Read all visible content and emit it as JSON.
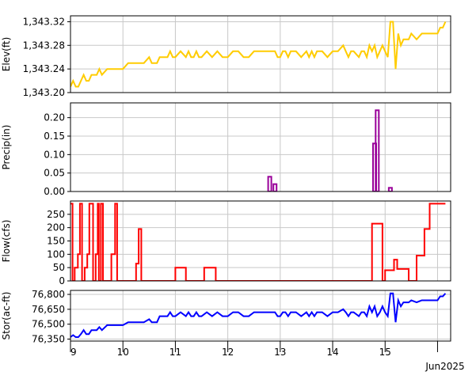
{
  "chart_data": [
    {
      "type": "line",
      "ylabel": "Elev(ft)",
      "ylim": [
        1343.2,
        1343.33
      ],
      "yticks": [
        1343.2,
        1343.24,
        1343.28,
        1343.32
      ],
      "ytick_labels": [
        "1,343.20",
        "1,343.24",
        "1,343.28",
        "1,343.32"
      ],
      "color": "#ffcc00",
      "grid": true,
      "series": [
        {
          "x": [
            9.0,
            9.05,
            9.1,
            9.15,
            9.2,
            9.25,
            9.3,
            9.35,
            9.4,
            9.45,
            9.5,
            9.55,
            9.6,
            9.7,
            9.8,
            9.9,
            10.0,
            10.1,
            10.2,
            10.3,
            10.4,
            10.5,
            10.55,
            10.6,
            10.65,
            10.7,
            10.75,
            10.8,
            10.85,
            10.9,
            10.95,
            11.0,
            11.1,
            11.2,
            11.25,
            11.3,
            11.35,
            11.4,
            11.45,
            11.5,
            11.6,
            11.7,
            11.8,
            11.9,
            12.0,
            12.1,
            12.2,
            12.3,
            12.4,
            12.5,
            12.6,
            12.7,
            12.8,
            12.9,
            12.95,
            13.0,
            13.05,
            13.1,
            13.15,
            13.2,
            13.3,
            13.4,
            13.5,
            13.55,
            13.6,
            13.65,
            13.7,
            13.8,
            13.9,
            14.0,
            14.1,
            14.2,
            14.25,
            14.3,
            14.35,
            14.4,
            14.5,
            14.55,
            14.6,
            14.65,
            14.7,
            14.75,
            14.8,
            14.85,
            14.9,
            14.95,
            15.0,
            15.05,
            15.1,
            15.15,
            15.2,
            15.25,
            15.3,
            15.35,
            15.4,
            15.45,
            15.5,
            15.6,
            15.7,
            15.8,
            15.9,
            15.95,
            16.0,
            16.05,
            16.1,
            16.15
          ],
          "y": [
            1343.21,
            1343.22,
            1343.21,
            1343.21,
            1343.22,
            1343.23,
            1343.22,
            1343.22,
            1343.23,
            1343.23,
            1343.23,
            1343.24,
            1343.23,
            1343.24,
            1343.24,
            1343.24,
            1343.24,
            1343.25,
            1343.25,
            1343.25,
            1343.25,
            1343.26,
            1343.25,
            1343.25,
            1343.25,
            1343.26,
            1343.26,
            1343.26,
            1343.26,
            1343.27,
            1343.26,
            1343.26,
            1343.27,
            1343.26,
            1343.27,
            1343.26,
            1343.26,
            1343.27,
            1343.26,
            1343.26,
            1343.27,
            1343.26,
            1343.27,
            1343.26,
            1343.26,
            1343.27,
            1343.27,
            1343.26,
            1343.26,
            1343.27,
            1343.27,
            1343.27,
            1343.27,
            1343.27,
            1343.26,
            1343.26,
            1343.27,
            1343.27,
            1343.26,
            1343.27,
            1343.27,
            1343.26,
            1343.27,
            1343.26,
            1343.27,
            1343.26,
            1343.27,
            1343.27,
            1343.26,
            1343.27,
            1343.27,
            1343.28,
            1343.27,
            1343.26,
            1343.27,
            1343.27,
            1343.26,
            1343.27,
            1343.27,
            1343.26,
            1343.28,
            1343.27,
            1343.28,
            1343.26,
            1343.27,
            1343.28,
            1343.27,
            1343.26,
            1343.32,
            1343.32,
            1343.24,
            1343.3,
            1343.28,
            1343.29,
            1343.29,
            1343.29,
            1343.3,
            1343.29,
            1343.3,
            1343.3,
            1343.3,
            1343.3,
            1343.3,
            1343.31,
            1343.31,
            1343.32
          ]
        }
      ]
    },
    {
      "type": "bar",
      "ylabel": "Precip(in)",
      "ylim": [
        0,
        0.24
      ],
      "yticks": [
        0.0,
        0.05,
        0.1,
        0.15,
        0.2
      ],
      "ytick_labels": [
        "0.00",
        "0.05",
        "0.10",
        "0.15",
        "0.20"
      ],
      "color": "#990099",
      "grid": true,
      "series": [
        {
          "x": [
            12.8,
            12.9,
            14.8,
            14.85,
            15.1
          ],
          "y": [
            0.04,
            0.02,
            0.13,
            0.22,
            0.01
          ]
        }
      ]
    },
    {
      "type": "line",
      "ylabel": "Flow(cfs)",
      "ylim": [
        0,
        300
      ],
      "yticks": [
        0,
        50,
        100,
        150,
        200,
        250
      ],
      "ytick_labels": [
        "0",
        "50",
        "100",
        "150",
        "200",
        "250"
      ],
      "color": "#ff0000",
      "grid": true,
      "series": [
        {
          "x": [
            9.0,
            9.04,
            9.04,
            9.08,
            9.08,
            9.14,
            9.14,
            9.18,
            9.18,
            9.22,
            9.22,
            9.27,
            9.27,
            9.32,
            9.32,
            9.36,
            9.36,
            9.43,
            9.43,
            9.48,
            9.48,
            9.52,
            9.52,
            9.54,
            9.54,
            9.58,
            9.58,
            9.62,
            9.62,
            9.78,
            9.78,
            9.85,
            9.85,
            9.89,
            9.89,
            9.94,
            9.94,
            10.25,
            10.25,
            10.3,
            10.3,
            10.35,
            10.35,
            10.39,
            10.39,
            11.0,
            11.0,
            11.2,
            11.2,
            11.55,
            11.55,
            11.77,
            11.77,
            14.75,
            14.75,
            14.95,
            14.95,
            15.0,
            15.0,
            15.17,
            15.17,
            15.23,
            15.23,
            15.28,
            15.28,
            15.45,
            15.45,
            15.5,
            15.5,
            15.6,
            15.6,
            15.75,
            15.75,
            15.85,
            15.85,
            15.9,
            15.9,
            16.15
          ],
          "y": [
            290,
            290,
            0,
            0,
            50,
            50,
            100,
            100,
            290,
            290,
            0,
            0,
            50,
            50,
            100,
            100,
            290,
            290,
            0,
            0,
            100,
            100,
            290,
            290,
            0,
            0,
            290,
            290,
            0,
            0,
            100,
            100,
            290,
            290,
            0,
            0,
            0,
            0,
            65,
            65,
            195,
            195,
            0,
            0,
            0,
            0,
            50,
            50,
            0,
            0,
            50,
            50,
            0,
            0,
            215,
            215,
            0,
            0,
            40,
            40,
            80,
            80,
            45,
            45,
            45,
            45,
            0,
            0,
            0,
            0,
            95,
            95,
            195,
            195,
            290,
            290,
            290,
            290
          ]
        }
      ]
    },
    {
      "type": "line",
      "ylabel": "Stor(ac-ft)",
      "ylim": [
        76330,
        76840
      ],
      "yticks": [
        76350,
        76500,
        76650,
        76800
      ],
      "ytick_labels": [
        "76,350",
        "76,500",
        "76,650",
        "76,800"
      ],
      "color": "#0000ff",
      "grid": true,
      "series": [
        {
          "x": [
            9.0,
            9.05,
            9.1,
            9.15,
            9.2,
            9.25,
            9.3,
            9.35,
            9.4,
            9.45,
            9.5,
            9.55,
            9.6,
            9.7,
            9.8,
            9.9,
            10.0,
            10.1,
            10.2,
            10.3,
            10.4,
            10.5,
            10.55,
            10.6,
            10.65,
            10.7,
            10.75,
            10.8,
            10.85,
            10.9,
            10.95,
            11.0,
            11.1,
            11.2,
            11.25,
            11.3,
            11.35,
            11.4,
            11.45,
            11.5,
            11.6,
            11.7,
            11.8,
            11.9,
            12.0,
            12.1,
            12.2,
            12.3,
            12.4,
            12.5,
            12.6,
            12.7,
            12.8,
            12.9,
            12.95,
            13.0,
            13.05,
            13.1,
            13.15,
            13.2,
            13.3,
            13.4,
            13.5,
            13.55,
            13.6,
            13.65,
            13.7,
            13.8,
            13.9,
            14.0,
            14.1,
            14.2,
            14.25,
            14.3,
            14.35,
            14.4,
            14.5,
            14.55,
            14.6,
            14.65,
            14.7,
            14.75,
            14.8,
            14.85,
            14.9,
            14.95,
            15.0,
            15.05,
            15.1,
            15.15,
            15.2,
            15.25,
            15.3,
            15.35,
            15.4,
            15.45,
            15.5,
            15.6,
            15.7,
            15.8,
            15.9,
            15.95,
            16.0,
            16.05,
            16.1,
            16.15
          ],
          "y": [
            76370,
            76390,
            76370,
            76370,
            76400,
            76440,
            76400,
            76400,
            76440,
            76440,
            76440,
            76470,
            76440,
            76490,
            76490,
            76490,
            76490,
            76520,
            76520,
            76520,
            76520,
            76550,
            76520,
            76520,
            76520,
            76580,
            76580,
            76580,
            76580,
            76620,
            76580,
            76580,
            76620,
            76580,
            76620,
            76580,
            76580,
            76620,
            76580,
            76580,
            76620,
            76580,
            76620,
            76580,
            76580,
            76620,
            76620,
            76580,
            76580,
            76620,
            76620,
            76620,
            76620,
            76620,
            76580,
            76580,
            76620,
            76620,
            76580,
            76620,
            76620,
            76580,
            76620,
            76580,
            76620,
            76580,
            76620,
            76620,
            76580,
            76620,
            76620,
            76650,
            76620,
            76580,
            76620,
            76620,
            76580,
            76620,
            76620,
            76580,
            76680,
            76620,
            76680,
            76580,
            76620,
            76680,
            76620,
            76580,
            76810,
            76810,
            76520,
            76740,
            76680,
            76720,
            76720,
            76720,
            76740,
            76720,
            76740,
            76740,
            76740,
            76740,
            76740,
            76780,
            76780,
            76810
          ]
        }
      ]
    }
  ],
  "x_axis": {
    "xlim": [
      9.0,
      16.25
    ],
    "ticks": [
      9,
      10,
      11,
      12,
      13,
      14,
      15,
      16
    ],
    "labels": [
      "9",
      "10",
      "11",
      "12",
      "13",
      "14",
      "15",
      ""
    ],
    "date_label": "Jun2025"
  }
}
